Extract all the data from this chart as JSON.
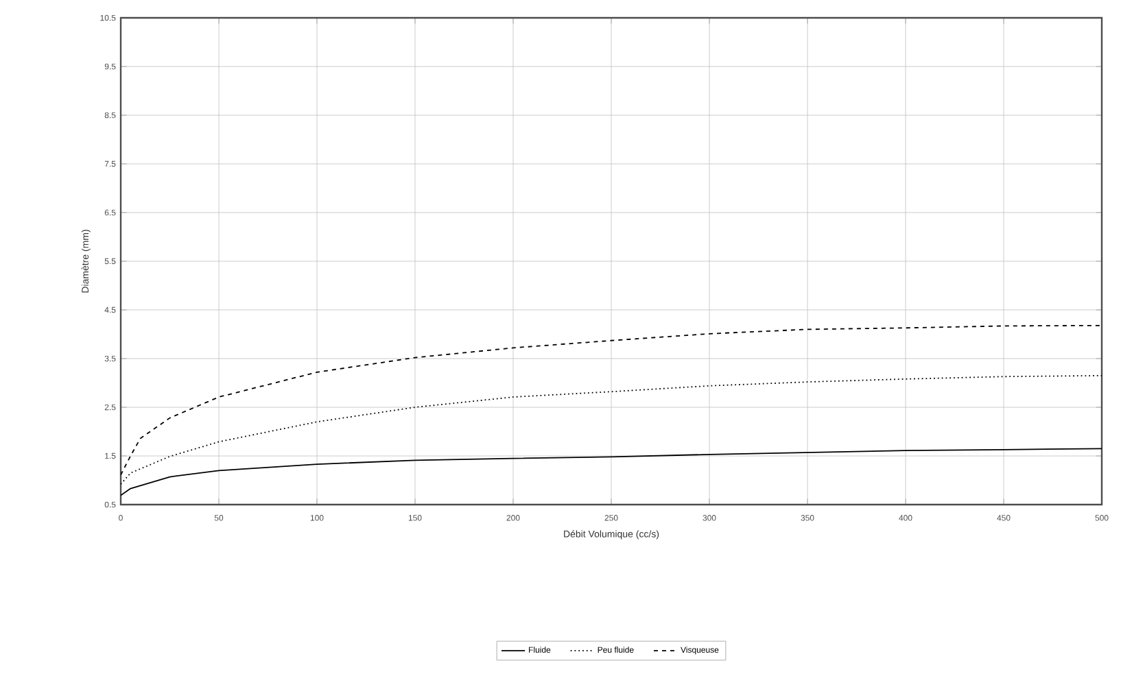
{
  "chart_data": {
    "type": "line",
    "xlabel": "Débit Volumique (cc/s)",
    "ylabel": "Diamètre (mm)",
    "xlim": [
      0,
      500
    ],
    "ylim": [
      0.5,
      10.5
    ],
    "xticks": [
      0,
      50,
      100,
      150,
      200,
      250,
      300,
      350,
      400,
      450,
      500
    ],
    "yticks": [
      0.5,
      1.5,
      2.5,
      3.5,
      4.5,
      5.5,
      6.5,
      7.5,
      8.5,
      9.5,
      10.5
    ],
    "grid": true,
    "legend": "bottom",
    "series": [
      {
        "name": "Fluide",
        "color": "#000000",
        "line_style": "solid",
        "x": [
          0,
          5,
          25,
          50,
          100,
          150,
          200,
          250,
          300,
          350,
          400,
          450,
          500
        ],
        "values": [
          0.69,
          0.83,
          1.07,
          1.2,
          1.33,
          1.41,
          1.45,
          1.48,
          1.53,
          1.57,
          1.61,
          1.63,
          1.65
        ]
      },
      {
        "name": "Peu fluide",
        "color": "#000000",
        "line_style": "dotted",
        "x": [
          0,
          5,
          25,
          50,
          100,
          150,
          200,
          250,
          300,
          350,
          400,
          450,
          500
        ],
        "values": [
          0.92,
          1.15,
          1.49,
          1.79,
          2.2,
          2.5,
          2.71,
          2.82,
          2.94,
          3.02,
          3.08,
          3.13,
          3.15
        ]
      },
      {
        "name": "Visqueuse",
        "color": "#000000",
        "line_style": "dashed",
        "x": [
          0,
          5,
          10,
          25,
          50,
          100,
          150,
          200,
          250,
          300,
          350,
          400,
          450,
          500
        ],
        "values": [
          1.11,
          1.5,
          1.86,
          2.28,
          2.71,
          3.22,
          3.52,
          3.72,
          3.87,
          4.01,
          4.1,
          4.13,
          4.17,
          4.18
        ]
      }
    ]
  }
}
